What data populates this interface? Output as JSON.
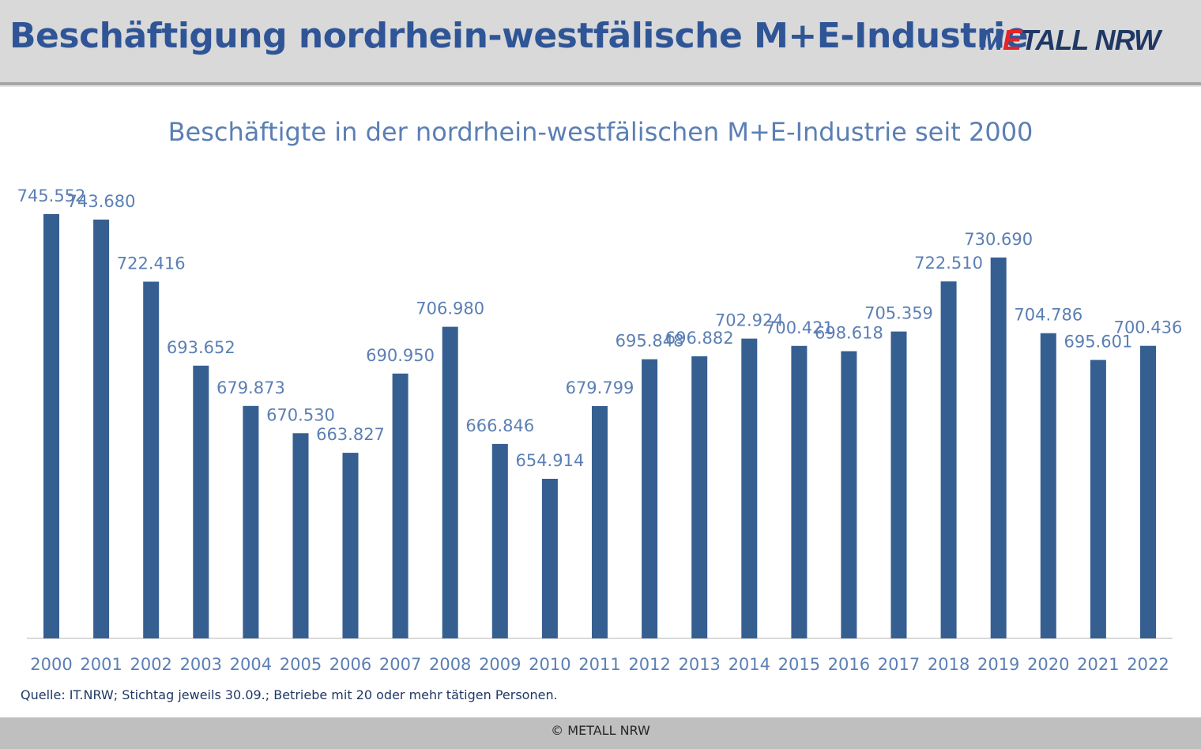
{
  "header": {
    "title": "Beschäftigung nordrhein-westfälische M+E-Industrie",
    "logo": {
      "part1": "M",
      "part2": "E",
      "part3": "TALL NRW"
    }
  },
  "colors": {
    "bar": "#365f91",
    "label": "#5b7fb4",
    "title": "#2f5597"
  },
  "chart_data": {
    "type": "bar",
    "title": "Beschäftigte in der nordrhein-westfälischen M+E-Industrie seit 2000",
    "xlabel": "",
    "ylabel": "",
    "categories": [
      "2000",
      "2001",
      "2002",
      "2003",
      "2004",
      "2005",
      "2006",
      "2007",
      "2008",
      "2009",
      "2010",
      "2011",
      "2012",
      "2013",
      "2014",
      "2015",
      "2016",
      "2017",
      "2018",
      "2019",
      "2020",
      "2021",
      "2022"
    ],
    "values": [
      745552,
      743680,
      722416,
      693652,
      679873,
      670530,
      663827,
      690950,
      706980,
      666846,
      654914,
      679799,
      695848,
      696882,
      702924,
      700421,
      698618,
      705359,
      722510,
      730690,
      704786,
      695601,
      700436
    ],
    "value_labels": [
      "745.552",
      "743.680",
      "722.416",
      "693.652",
      "679.873",
      "670.530",
      "663.827",
      "690.950",
      "706.980",
      "666.846",
      "654.914",
      "679.799",
      "695.848",
      "696.882",
      "702.924",
      "700.421",
      "698.618",
      "705.359",
      "722.510",
      "730.690",
      "704.786",
      "695.601",
      "700.436"
    ],
    "ylim": [
      600000,
      750000
    ],
    "grid": false,
    "legend": "none"
  },
  "source": "Quelle: IT.NRW; Stichtag jeweils 30.09.; Betriebe mit 20 oder mehr tätigen Personen.",
  "footer": {
    "copyright": "© METALL NRW"
  }
}
